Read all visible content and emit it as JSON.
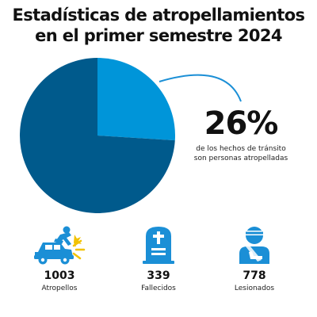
{
  "title": {
    "line1": "Estadísticas de atropellamientos",
    "line2": "en el primer semestre 2024"
  },
  "chart_data": {
    "type": "pie",
    "title": "Estadísticas de atropellamientos en el primer semestre 2024",
    "slices": [
      {
        "value": 26,
        "color": "#0095d9"
      },
      {
        "value": 74,
        "color": "#005a8c"
      }
    ],
    "highlight": {
      "value": "26%",
      "caption": "de los hechos de tránsito son personas atropelladas"
    }
  },
  "stats": [
    {
      "icon": "car-crash-icon",
      "value": "1003",
      "label": "Atropellos"
    },
    {
      "icon": "gravestone-icon",
      "value": "339",
      "label": "Fallecidos"
    },
    {
      "icon": "injured-person-icon",
      "value": "778",
      "label": "Lesionados"
    }
  ],
  "colors": {
    "light_blue": "#0095d9",
    "dark_blue": "#005a8c",
    "icon_blue": "#1b8fd6"
  }
}
